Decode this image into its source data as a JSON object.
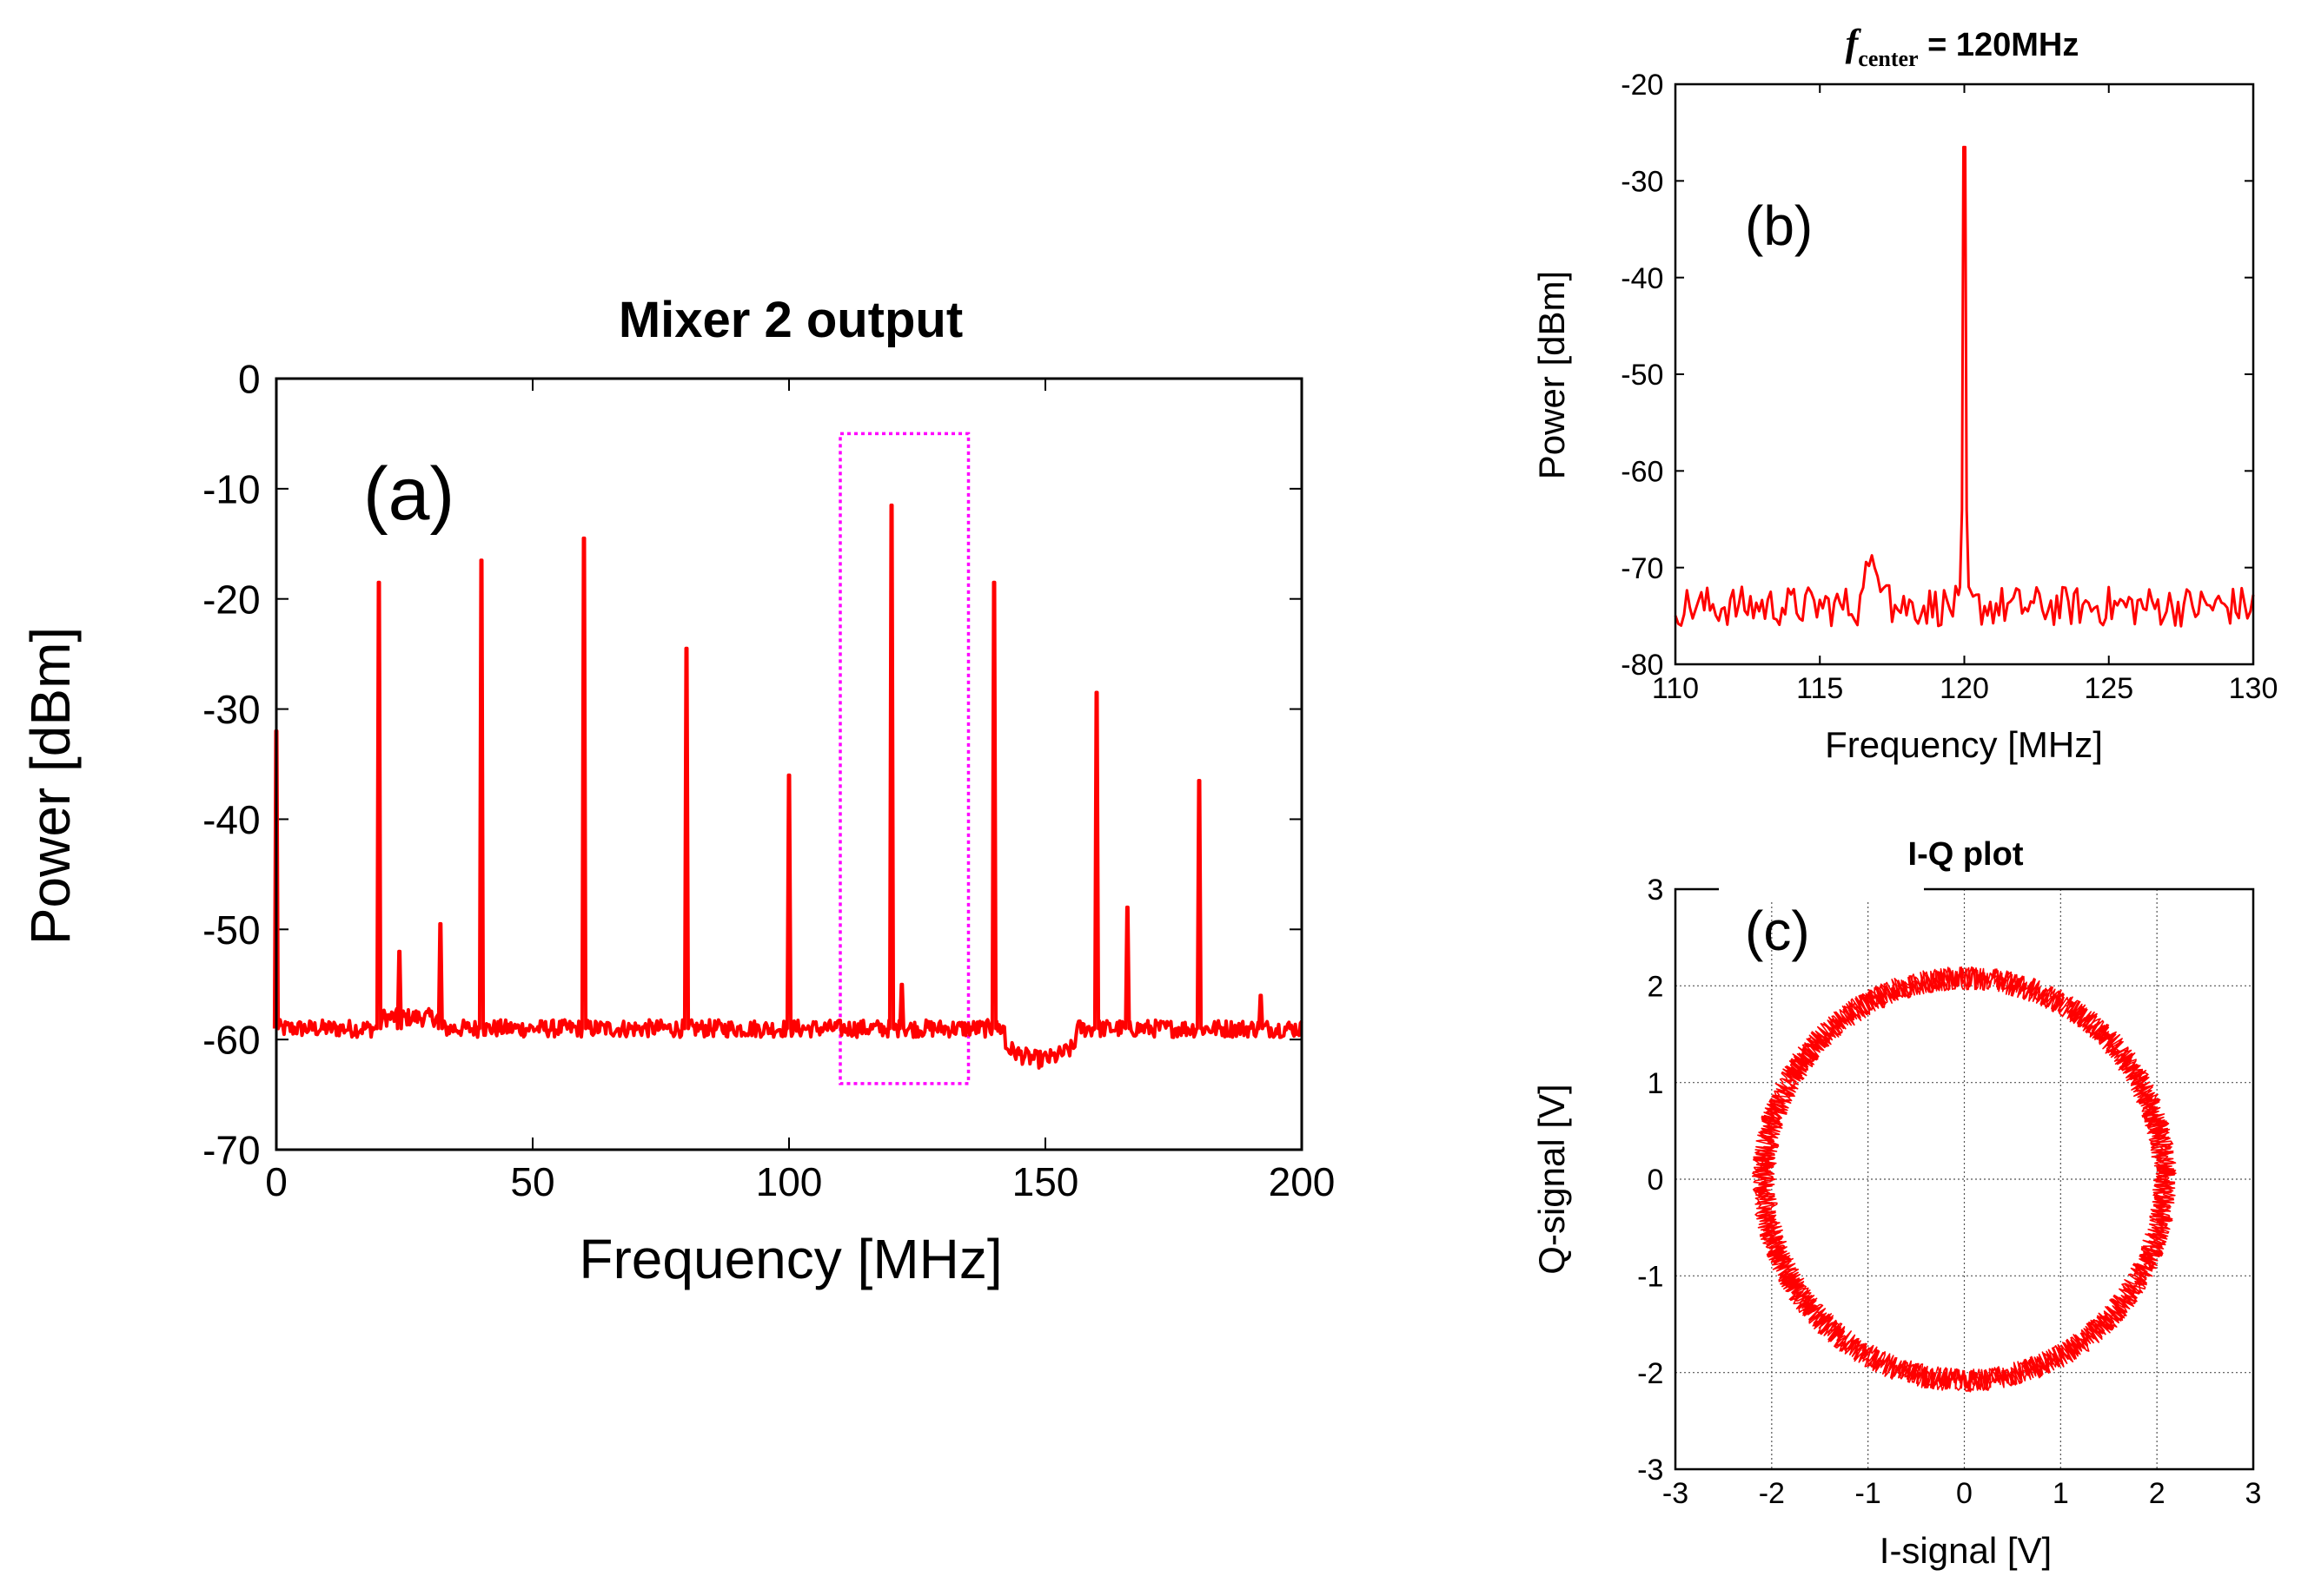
{
  "chart_data": [
    {
      "type": "line",
      "panel_label": "(a)",
      "title": "Mixer 2 output",
      "xlabel": "Frequency [MHz]",
      "ylabel": "Power [dBm]",
      "xlim": [
        0,
        200
      ],
      "ylim": [
        -70,
        0
      ],
      "xticks": [
        0,
        50,
        100,
        150,
        200
      ],
      "yticks": [
        0,
        -10,
        -20,
        -30,
        -40,
        -50,
        -60,
        -70
      ],
      "grid": false,
      "line_color": "#ff0000",
      "highlight_box": {
        "x_range": [
          110,
          135
        ],
        "y_range": [
          -64,
          -5
        ],
        "color": "#ff00ff",
        "style": "dotted"
      },
      "noise_floor_dbm": -59,
      "peaks": [
        {
          "x": 0,
          "y": -32
        },
        {
          "x": 20,
          "y": -18.5
        },
        {
          "x": 24,
          "y": -52
        },
        {
          "x": 32,
          "y": -49.5
        },
        {
          "x": 40,
          "y": -16.5
        },
        {
          "x": 60,
          "y": -14.5
        },
        {
          "x": 80,
          "y": -24.5
        },
        {
          "x": 100,
          "y": -36
        },
        {
          "x": 120,
          "y": -11.5
        },
        {
          "x": 122,
          "y": -55
        },
        {
          "x": 140,
          "y": -18.5
        },
        {
          "x": 160,
          "y": -28.5
        },
        {
          "x": 166,
          "y": -48
        },
        {
          "x": 180,
          "y": -36.5
        },
        {
          "x": 192,
          "y": -56
        }
      ]
    },
    {
      "type": "line",
      "panel_label": "(b)",
      "title_symbol": "f",
      "title_subscript": "center",
      "title_value": " = 120MHz",
      "xlabel": "Frequency [MHz]",
      "ylabel": "Power [dBm]",
      "xlim": [
        110,
        130
      ],
      "ylim": [
        -80,
        -20
      ],
      "xticks": [
        110,
        115,
        120,
        125,
        130
      ],
      "yticks": [
        -20,
        -30,
        -40,
        -50,
        -60,
        -70,
        -80
      ],
      "grid": false,
      "line_color": "#ff0000",
      "noise_floor_dbm": -74,
      "peaks": [
        {
          "x": 117,
          "y": -69
        },
        {
          "x": 120,
          "y": -26.5
        }
      ]
    },
    {
      "type": "scatter",
      "panel_label": "(c)",
      "title": "I-Q plot",
      "xlabel": "I-signal [V]",
      "ylabel": "Q-signal [V]",
      "xlim": [
        -3,
        3
      ],
      "ylim": [
        -3,
        3
      ],
      "xticks": [
        -3,
        -2,
        -1,
        0,
        1,
        2,
        3
      ],
      "yticks": [
        3,
        2,
        1,
        0,
        -1,
        -2,
        -3
      ],
      "grid": true,
      "line_color": "#ff0000",
      "circle": {
        "center": [
          0,
          0
        ],
        "radius": 2.08,
        "spread": 0.12
      }
    }
  ]
}
